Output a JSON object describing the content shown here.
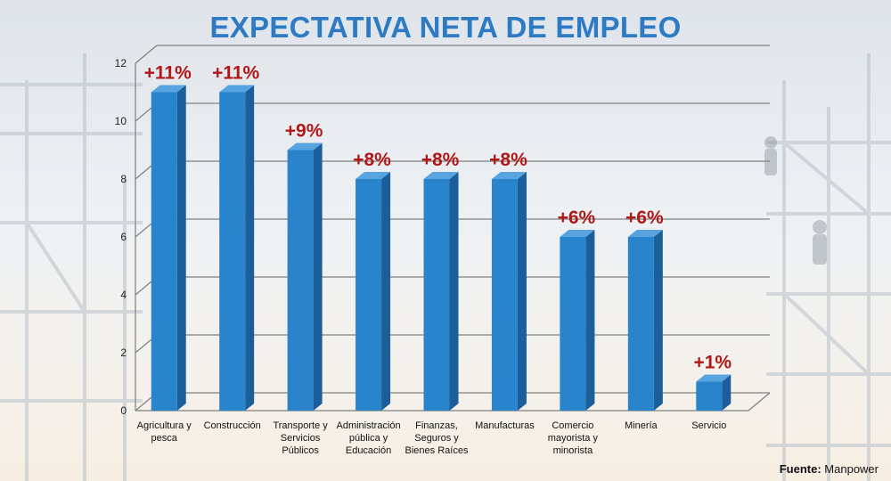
{
  "chart_data": {
    "type": "bar",
    "title": "EXPECTATIVA NETA DE EMPLEO",
    "categories": [
      [
        "Agricultura y",
        "pesca"
      ],
      [
        "Construcción"
      ],
      [
        "Transporte y",
        "Servicios",
        "Públicos"
      ],
      [
        "Administración",
        "pública y",
        "Educación"
      ],
      [
        "Finanzas,",
        "Seguros y",
        "Bienes Raíces"
      ],
      [
        "Manufacturas"
      ],
      [
        "Comercio",
        "mayorista y",
        "minorista"
      ],
      [
        "Minería"
      ],
      [
        "Servicio"
      ]
    ],
    "values": [
      11,
      11,
      9,
      8,
      8,
      8,
      6,
      6,
      1
    ],
    "data_labels": [
      "+11%",
      "+11%",
      "+9%",
      "+8%",
      "+8%",
      "+8%",
      "+6%",
      "+6%",
      "+1%"
    ],
    "ylim": [
      0,
      12
    ],
    "yticks": [
      "0",
      "2",
      "4",
      "6",
      "8",
      "10",
      "12"
    ],
    "grid": true,
    "colors": {
      "bar_front": "#2a84cc",
      "bar_side": "#1b5e99",
      "bar_top": "#57a4e0",
      "label": "#b01818",
      "title": "#2e7bc4"
    }
  },
  "source": {
    "label": "Fuente:",
    "value": "Manpower"
  }
}
